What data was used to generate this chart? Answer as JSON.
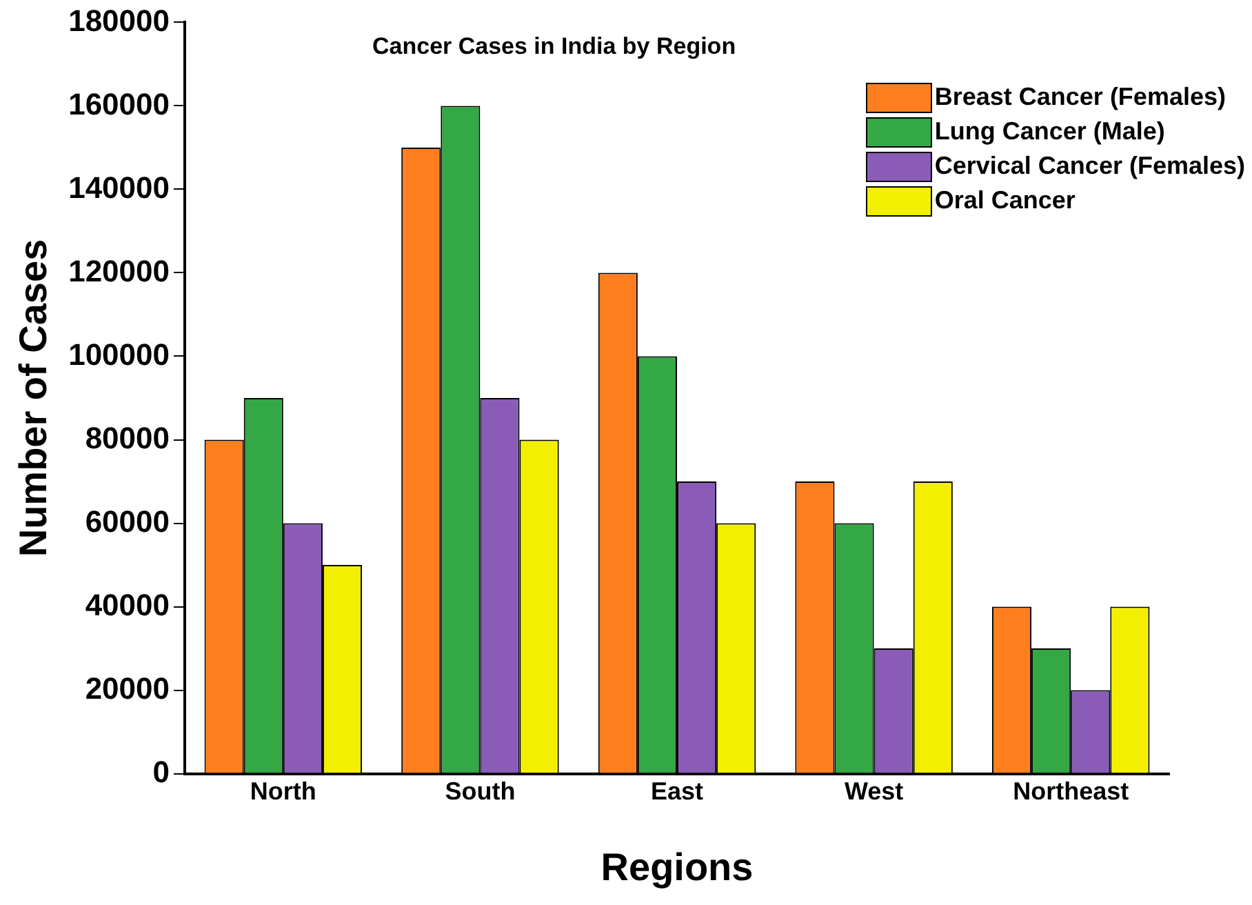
{
  "chart_data": {
    "type": "bar",
    "title": "Cancer Cases in India  by Region",
    "xlabel": "Regions",
    "ylabel": "Number of Cases",
    "categories": [
      "North",
      "South",
      "East",
      "West",
      "Northeast"
    ],
    "series": [
      {
        "name": "Breast Cancer (Females)",
        "color": "#ff7f1e",
        "values": [
          80000,
          150000,
          120000,
          70000,
          40000
        ]
      },
      {
        "name": "Lung Cancer (Male)",
        "color": "#33a844",
        "values": [
          90000,
          160000,
          100000,
          60000,
          30000
        ]
      },
      {
        "name": "Cervical Cancer (Females)",
        "color": "#8a5cb8",
        "values": [
          60000,
          90000,
          70000,
          30000,
          20000
        ]
      },
      {
        "name": "Oral Cancer",
        "color": "#f2f000",
        "values": [
          50000,
          80000,
          60000,
          70000,
          40000
        ]
      }
    ],
    "ylim": [
      0,
      180000
    ],
    "yticks": [
      0,
      20000,
      40000,
      60000,
      80000,
      100000,
      120000,
      140000,
      160000,
      180000
    ],
    "grid": false,
    "legend": "top right"
  }
}
